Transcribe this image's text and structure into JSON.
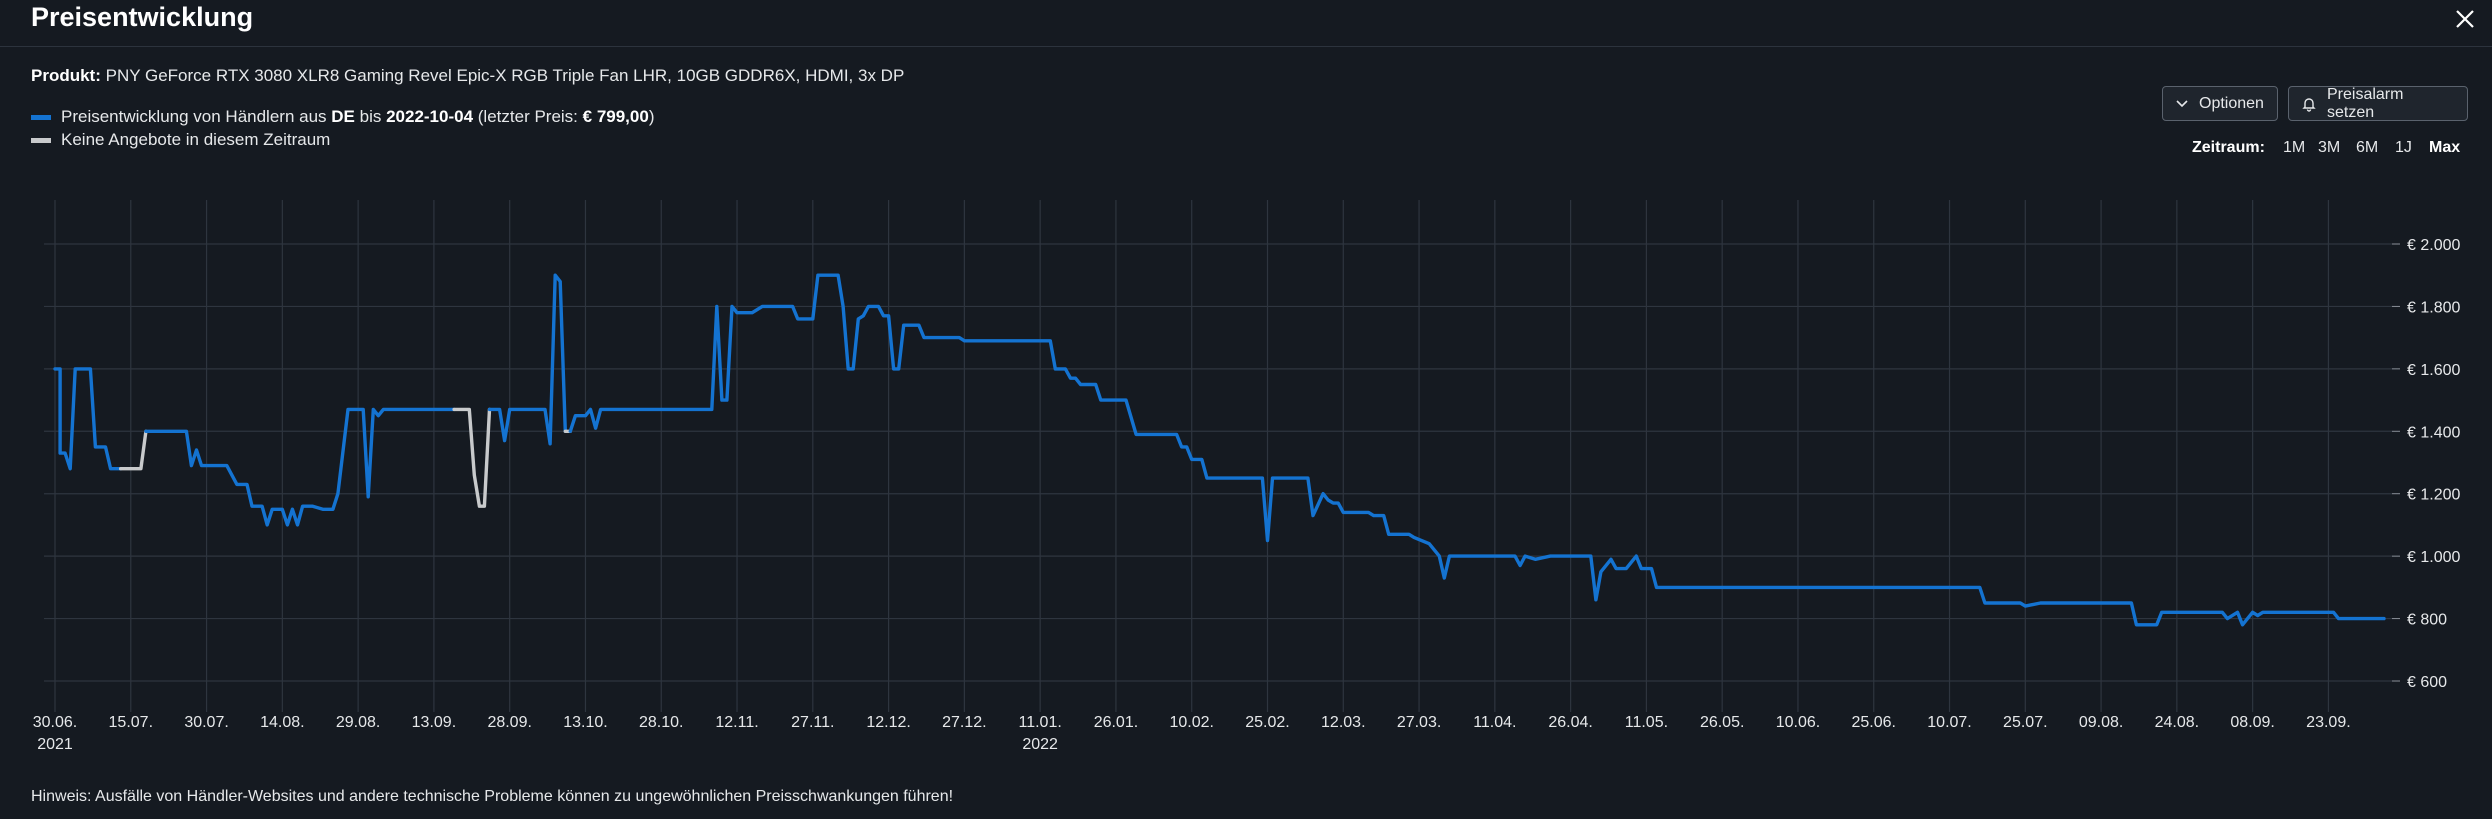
{
  "window": {
    "title": "Preisentwicklung",
    "close_icon": "close-icon"
  },
  "product": {
    "label": "Produkt:",
    "name": "PNY GeForce RTX 3080 XLR8 Gaming Revel Epic-X RGB Triple Fan LHR, 10GB GDDR6X, HDMI, 3x DP"
  },
  "legend": {
    "line1": {
      "prefix": "Preisentwicklung von Händlern aus ",
      "country": "DE",
      "mid": " bis ",
      "date": "2022-10-04",
      "suffix1": " (letzter Preis: ",
      "price": "€ 799,00",
      "suffix2": ")",
      "color": "#1473d1"
    },
    "line2": {
      "text": "Keine Angebote in diesem Zeitraum",
      "color": "#c8cacc"
    }
  },
  "buttons": {
    "optionen": "Optionen",
    "preisalarm": "Preisalarm setzen"
  },
  "zeitraum": {
    "label": "Zeitraum:",
    "options": [
      "1M",
      "3M",
      "6M",
      "1J",
      "Max"
    ],
    "selected": "Max"
  },
  "hint": "Hinweis: Ausfälle von Händler-Websites und andere technische Probleme können zu ungewöhnlichen Preisschwankungen führen!",
  "colors": {
    "background": "#151a21",
    "grid": "#2e353f",
    "series": "#1473d1",
    "no_offer": "#c8cacc"
  },
  "chart_data": {
    "type": "line",
    "title": "",
    "xlabel": "",
    "ylabel": "",
    "ylim": [
      600,
      2000
    ],
    "y_ticks": [
      2000,
      1800,
      1600,
      1400,
      1200,
      1000,
      800,
      600
    ],
    "y_tick_labels": [
      "€ 2.000",
      "€ 1.800",
      "€ 1.600",
      "€ 1.400",
      "€ 1.200",
      "€ 1.000",
      "€ 800",
      "€ 600"
    ],
    "x_start": "2021-06-30",
    "x_end": "2022-10-04",
    "x_ticks": [
      {
        "date": "2021-06-30",
        "label": "30.06.",
        "sublabel": "2021"
      },
      {
        "date": "2021-07-15",
        "label": "15.07."
      },
      {
        "date": "2021-07-30",
        "label": "30.07."
      },
      {
        "date": "2021-08-14",
        "label": "14.08."
      },
      {
        "date": "2021-08-29",
        "label": "29.08."
      },
      {
        "date": "2021-09-13",
        "label": "13.09."
      },
      {
        "date": "2021-09-28",
        "label": "28.09."
      },
      {
        "date": "2021-10-13",
        "label": "13.10."
      },
      {
        "date": "2021-10-28",
        "label": "28.10."
      },
      {
        "date": "2021-11-12",
        "label": "12.11."
      },
      {
        "date": "2021-11-27",
        "label": "27.11."
      },
      {
        "date": "2021-12-12",
        "label": "12.12."
      },
      {
        "date": "2021-12-27",
        "label": "27.12."
      },
      {
        "date": "2022-01-11",
        "label": "11.01.",
        "sublabel": "2022"
      },
      {
        "date": "2022-01-26",
        "label": "26.01."
      },
      {
        "date": "2022-02-10",
        "label": "10.02."
      },
      {
        "date": "2022-02-25",
        "label": "25.02."
      },
      {
        "date": "2022-03-12",
        "label": "12.03."
      },
      {
        "date": "2022-03-27",
        "label": "27.03."
      },
      {
        "date": "2022-04-11",
        "label": "11.04."
      },
      {
        "date": "2022-04-26",
        "label": "26.04."
      },
      {
        "date": "2022-05-11",
        "label": "11.05."
      },
      {
        "date": "2022-05-26",
        "label": "26.05."
      },
      {
        "date": "2022-06-10",
        "label": "10.06."
      },
      {
        "date": "2022-06-25",
        "label": "25.06."
      },
      {
        "date": "2022-07-10",
        "label": "10.07."
      },
      {
        "date": "2022-07-25",
        "label": "25.07."
      },
      {
        "date": "2022-08-09",
        "label": "09.08."
      },
      {
        "date": "2022-08-24",
        "label": "24.08."
      },
      {
        "date": "2022-09-08",
        "label": "08.09."
      },
      {
        "date": "2022-09-23",
        "label": "23.09."
      }
    ],
    "series": [
      {
        "color": "#1473d1",
        "points": [
          [
            "2021-06-30",
            1600
          ],
          [
            "2021-07-01",
            1600
          ],
          [
            "2021-07-01",
            1330
          ],
          [
            "2021-07-02",
            1330
          ],
          [
            "2021-07-03",
            1280
          ],
          [
            "2021-07-04",
            1600
          ],
          [
            "2021-07-07",
            1600
          ],
          [
            "2021-07-08",
            1350
          ],
          [
            "2021-07-10",
            1350
          ],
          [
            "2021-07-11",
            1280
          ],
          [
            "2021-07-13",
            1280
          ]
        ]
      },
      {
        "color": "#c8cacc",
        "points": [
          [
            "2021-07-13",
            1280
          ],
          [
            "2021-07-17",
            1280
          ],
          [
            "2021-07-18",
            1400
          ]
        ]
      },
      {
        "color": "#1473d1",
        "points": [
          [
            "2021-07-18",
            1400
          ],
          [
            "2021-07-26",
            1400
          ],
          [
            "2021-07-27",
            1290
          ],
          [
            "2021-07-28",
            1340
          ],
          [
            "2021-07-29",
            1290
          ],
          [
            "2021-08-03",
            1290
          ],
          [
            "2021-08-05",
            1230
          ],
          [
            "2021-08-07",
            1230
          ],
          [
            "2021-08-08",
            1160
          ],
          [
            "2021-08-10",
            1160
          ],
          [
            "2021-08-11",
            1100
          ],
          [
            "2021-08-12",
            1150
          ],
          [
            "2021-08-14",
            1150
          ],
          [
            "2021-08-15",
            1100
          ],
          [
            "2021-08-16",
            1150
          ],
          [
            "2021-08-17",
            1100
          ],
          [
            "2021-08-18",
            1160
          ],
          [
            "2021-08-20",
            1160
          ],
          [
            "2021-08-22",
            1150
          ],
          [
            "2021-08-24",
            1150
          ],
          [
            "2021-08-25",
            1200
          ],
          [
            "2021-08-27",
            1470
          ],
          [
            "2021-08-30",
            1470
          ],
          [
            "2021-08-31",
            1190
          ],
          [
            "2021-09-01",
            1470
          ],
          [
            "2021-09-02",
            1450
          ],
          [
            "2021-09-03",
            1470
          ],
          [
            "2021-09-13",
            1470
          ],
          [
            "2021-09-17",
            1470
          ]
        ]
      },
      {
        "color": "#c8cacc",
        "points": [
          [
            "2021-09-17",
            1470
          ],
          [
            "2021-09-20",
            1470
          ],
          [
            "2021-09-21",
            1260
          ],
          [
            "2021-09-22",
            1160
          ],
          [
            "2021-09-23",
            1160
          ],
          [
            "2021-09-24",
            1470
          ]
        ]
      },
      {
        "color": "#1473d1",
        "points": [
          [
            "2021-09-24",
            1470
          ],
          [
            "2021-09-26",
            1470
          ],
          [
            "2021-09-27",
            1370
          ],
          [
            "2021-09-28",
            1470
          ],
          [
            "2021-10-05",
            1470
          ],
          [
            "2021-10-06",
            1360
          ],
          [
            "2021-10-07",
            1900
          ],
          [
            "2021-10-08",
            1880
          ],
          [
            "2021-10-09",
            1400
          ]
        ]
      },
      {
        "color": "#c8cacc",
        "points": [
          [
            "2021-10-09",
            1400
          ],
          [
            "2021-10-10",
            1400
          ]
        ]
      },
      {
        "color": "#1473d1",
        "points": [
          [
            "2021-10-10",
            1400
          ],
          [
            "2021-10-11",
            1450
          ],
          [
            "2021-10-13",
            1450
          ],
          [
            "2021-10-14",
            1470
          ],
          [
            "2021-10-15",
            1410
          ],
          [
            "2021-10-16",
            1470
          ],
          [
            "2021-11-07",
            1470
          ],
          [
            "2021-11-08",
            1800
          ],
          [
            "2021-11-09",
            1500
          ],
          [
            "2021-11-10",
            1500
          ],
          [
            "2021-11-11",
            1800
          ],
          [
            "2021-11-12",
            1780
          ],
          [
            "2021-11-15",
            1780
          ],
          [
            "2021-11-17",
            1800
          ],
          [
            "2021-11-23",
            1800
          ],
          [
            "2021-11-24",
            1760
          ],
          [
            "2021-11-27",
            1760
          ],
          [
            "2021-11-28",
            1900
          ],
          [
            "2021-12-02",
            1900
          ],
          [
            "2021-12-03",
            1800
          ],
          [
            "2021-12-04",
            1600
          ],
          [
            "2021-12-05",
            1600
          ],
          [
            "2021-12-06",
            1760
          ],
          [
            "2021-12-07",
            1770
          ],
          [
            "2021-12-08",
            1800
          ],
          [
            "2021-12-10",
            1800
          ],
          [
            "2021-12-11",
            1770
          ],
          [
            "2021-12-12",
            1770
          ],
          [
            "2021-12-13",
            1600
          ],
          [
            "2021-12-14",
            1600
          ],
          [
            "2021-12-15",
            1740
          ],
          [
            "2021-12-18",
            1740
          ],
          [
            "2021-12-19",
            1700
          ],
          [
            "2021-12-26",
            1700
          ],
          [
            "2021-12-27",
            1690
          ],
          [
            "2022-01-13",
            1690
          ],
          [
            "2022-01-14",
            1600
          ],
          [
            "2022-01-16",
            1600
          ],
          [
            "2022-01-17",
            1570
          ],
          [
            "2022-01-18",
            1570
          ],
          [
            "2022-01-19",
            1550
          ],
          [
            "2022-01-22",
            1550
          ],
          [
            "2022-01-23",
            1500
          ],
          [
            "2022-01-28",
            1500
          ],
          [
            "2022-01-30",
            1390
          ],
          [
            "2022-02-07",
            1390
          ],
          [
            "2022-02-08",
            1350
          ],
          [
            "2022-02-09",
            1350
          ],
          [
            "2022-02-10",
            1310
          ],
          [
            "2022-02-12",
            1310
          ],
          [
            "2022-02-13",
            1250
          ],
          [
            "2022-02-24",
            1250
          ],
          [
            "2022-02-25",
            1050
          ],
          [
            "2022-02-26",
            1250
          ],
          [
            "2022-03-05",
            1250
          ],
          [
            "2022-03-06",
            1130
          ],
          [
            "2022-03-08",
            1200
          ],
          [
            "2022-03-09",
            1180
          ],
          [
            "2022-03-10",
            1170
          ],
          [
            "2022-03-11",
            1170
          ],
          [
            "2022-03-12",
            1140
          ],
          [
            "2022-03-17",
            1140
          ],
          [
            "2022-03-18",
            1130
          ],
          [
            "2022-03-20",
            1130
          ],
          [
            "2022-03-21",
            1070
          ],
          [
            "2022-03-25",
            1070
          ],
          [
            "2022-03-26",
            1060
          ],
          [
            "2022-03-29",
            1040
          ],
          [
            "2022-03-31",
            1000
          ],
          [
            "2022-04-01",
            930
          ],
          [
            "2022-04-02",
            1000
          ],
          [
            "2022-04-15",
            1000
          ],
          [
            "2022-04-16",
            970
          ],
          [
            "2022-04-17",
            1000
          ],
          [
            "2022-04-19",
            990
          ],
          [
            "2022-04-22",
            1000
          ],
          [
            "2022-04-30",
            1000
          ],
          [
            "2022-05-01",
            860
          ],
          [
            "2022-05-02",
            950
          ],
          [
            "2022-05-04",
            990
          ],
          [
            "2022-05-05",
            960
          ],
          [
            "2022-05-07",
            960
          ],
          [
            "2022-05-09",
            1000
          ],
          [
            "2022-05-10",
            960
          ],
          [
            "2022-05-12",
            960
          ],
          [
            "2022-05-13",
            900
          ],
          [
            "2022-07-16",
            900
          ],
          [
            "2022-07-17",
            850
          ],
          [
            "2022-07-24",
            850
          ],
          [
            "2022-07-25",
            840
          ],
          [
            "2022-07-28",
            850
          ],
          [
            "2022-08-15",
            850
          ],
          [
            "2022-08-16",
            780
          ],
          [
            "2022-08-20",
            780
          ],
          [
            "2022-08-21",
            820
          ],
          [
            "2022-09-02",
            820
          ],
          [
            "2022-09-03",
            800
          ],
          [
            "2022-09-05",
            820
          ],
          [
            "2022-09-06",
            780
          ],
          [
            "2022-09-08",
            820
          ],
          [
            "2022-09-09",
            810
          ],
          [
            "2022-09-10",
            820
          ],
          [
            "2022-09-24",
            820
          ],
          [
            "2022-09-25",
            800
          ],
          [
            "2022-10-04",
            800
          ]
        ]
      }
    ]
  }
}
